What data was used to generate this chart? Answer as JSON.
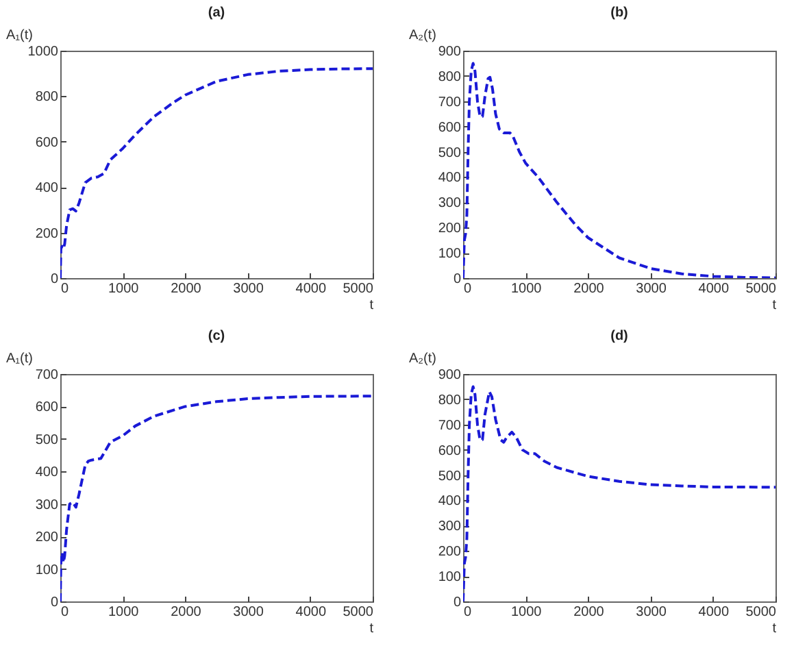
{
  "chart_data": [
    {
      "type": "line",
      "title": "(a)",
      "xlabel": "t",
      "ylabel": "A₁(t)",
      "xlim": [
        0,
        5000
      ],
      "xticks": [
        0,
        1000,
        2000,
        3000,
        4000,
        5000
      ],
      "ylim": [
        0,
        1000
      ],
      "yticks": [
        0,
        200,
        400,
        600,
        800,
        1000
      ],
      "grid": false,
      "legend": false,
      "line_style": "dashed",
      "series": [
        {
          "color": "#1a1ad6",
          "x": [
            0,
            10,
            30,
            50,
            70,
            100,
            150,
            200,
            250,
            300,
            400,
            500,
            600,
            700,
            800,
            1000,
            1200,
            1500,
            1800,
            2000,
            2500,
            3000,
            3500,
            4000,
            4500,
            5000
          ],
          "values": [
            0,
            130,
            140,
            130,
            150,
            230,
            300,
            305,
            295,
            330,
            420,
            440,
            445,
            460,
            520,
            570,
            630,
            710,
            770,
            805,
            865,
            895,
            910,
            917,
            920,
            921
          ]
        }
      ]
    },
    {
      "type": "line",
      "title": "(b)",
      "xlabel": "t",
      "ylabel": "A₂(t)",
      "xlim": [
        0,
        5000
      ],
      "xticks": [
        0,
        1000,
        2000,
        3000,
        4000,
        5000
      ],
      "ylim": [
        0,
        900
      ],
      "yticks": [
        0,
        100,
        200,
        300,
        400,
        500,
        600,
        700,
        800,
        900
      ],
      "grid": false,
      "legend": false,
      "line_style": "dashed",
      "series": [
        {
          "color": "#1a1ad6",
          "x": [
            0,
            20,
            40,
            60,
            80,
            100,
            130,
            160,
            190,
            230,
            270,
            310,
            350,
            400,
            430,
            470,
            520,
            580,
            650,
            750,
            800,
            900,
            1000,
            1200,
            1500,
            1800,
            2000,
            2500,
            3000,
            3500,
            4000,
            4500,
            5000
          ],
          "values": [
            0,
            150,
            175,
            250,
            500,
            700,
            820,
            850,
            820,
            700,
            640,
            640,
            720,
            790,
            795,
            750,
            650,
            590,
            575,
            575,
            560,
            500,
            455,
            400,
            300,
            210,
            160,
            80,
            38,
            17,
            7,
            3,
            1
          ]
        }
      ]
    },
    {
      "type": "line",
      "title": "(c)",
      "xlabel": "t",
      "ylabel": "A₁(t)",
      "xlim": [
        0,
        5000
      ],
      "xticks": [
        0,
        1000,
        2000,
        3000,
        4000,
        5000
      ],
      "ylim": [
        0,
        700
      ],
      "yticks": [
        0,
        100,
        200,
        300,
        400,
        500,
        600,
        700
      ],
      "grid": false,
      "legend": false,
      "line_style": "dashed",
      "series": [
        {
          "color": "#1a1ad6",
          "x": [
            0,
            10,
            30,
            50,
            70,
            100,
            150,
            200,
            250,
            300,
            400,
            450,
            500,
            650,
            800,
            1000,
            1200,
            1500,
            2000,
            2500,
            3000,
            3500,
            4000,
            5000
          ],
          "values": [
            0,
            120,
            150,
            120,
            140,
            220,
            300,
            305,
            290,
            330,
            420,
            432,
            435,
            440,
            490,
            510,
            540,
            570,
            600,
            615,
            624,
            628,
            631,
            632
          ]
        }
      ]
    },
    {
      "type": "line",
      "title": "(d)",
      "xlabel": "t",
      "ylabel": "A₂(t)",
      "xlim": [
        0,
        5000
      ],
      "xticks": [
        0,
        1000,
        2000,
        3000,
        4000,
        5000
      ],
      "ylim": [
        0,
        900
      ],
      "yticks": [
        0,
        100,
        200,
        300,
        400,
        500,
        600,
        700,
        800,
        900
      ],
      "grid": false,
      "legend": false,
      "line_style": "dashed",
      "series": [
        {
          "color": "#1a1ad6",
          "x": [
            0,
            20,
            40,
            60,
            80,
            100,
            130,
            160,
            190,
            230,
            270,
            310,
            350,
            420,
            460,
            520,
            600,
            650,
            700,
            780,
            850,
            950,
            1050,
            1150,
            1300,
            1500,
            2000,
            2500,
            3000,
            3500,
            4000,
            5000
          ],
          "values": [
            0,
            150,
            175,
            250,
            500,
            700,
            820,
            850,
            820,
            700,
            640,
            640,
            740,
            830,
            810,
            720,
            640,
            630,
            650,
            670,
            650,
            600,
            585,
            585,
            555,
            530,
            495,
            475,
            462,
            457,
            453,
            452
          ]
        }
      ]
    }
  ]
}
